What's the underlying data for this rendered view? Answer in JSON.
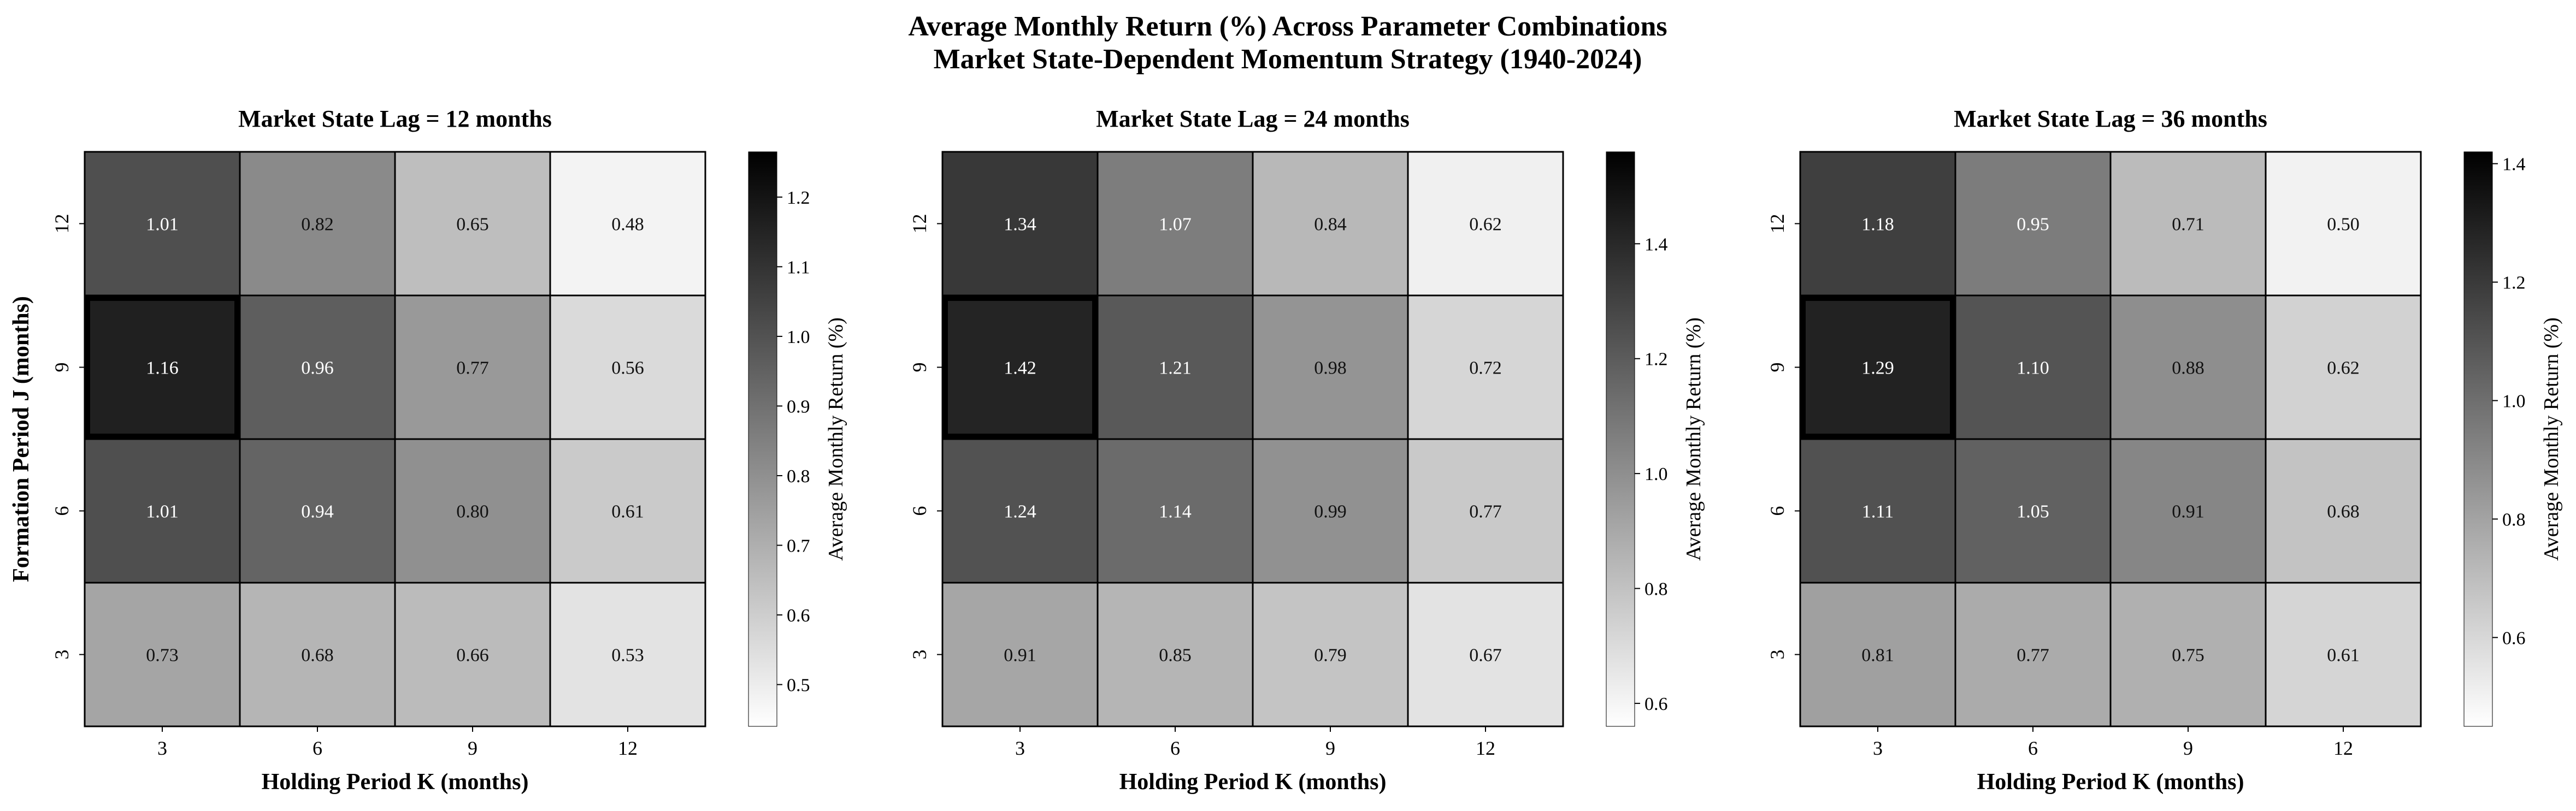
{
  "title_line1": "Average Monthly Return (%) Across Parameter Combinations",
  "title_line2": "Market State-Dependent Momentum Strategy (1940-2024)",
  "chart_data": [
    {
      "type": "heatmap",
      "title": "Market State Lag = 12 months",
      "xlabel": "Holding Period K (months)",
      "ylabel": "Formation Period J (months)",
      "x_categories": [
        "3",
        "6",
        "9",
        "12"
      ],
      "y_categories": [
        "12",
        "9",
        "6",
        "3"
      ],
      "values": [
        [
          1.01,
          0.82,
          0.65,
          0.48
        ],
        [
          1.16,
          0.96,
          0.77,
          0.56
        ],
        [
          1.01,
          0.94,
          0.8,
          0.61
        ],
        [
          0.73,
          0.68,
          0.66,
          0.53
        ]
      ],
      "value_labels": [
        [
          "1.01",
          "0.82",
          "0.65",
          "0.48"
        ],
        [
          "1.16",
          "0.96",
          "0.77",
          "0.56"
        ],
        [
          "1.01",
          "0.94",
          "0.80",
          "0.61"
        ],
        [
          "0.73",
          "0.68",
          "0.66",
          "0.53"
        ]
      ],
      "highlight_cell": {
        "row": 1,
        "col": 0
      },
      "colorbar": {
        "label": "Average Monthly Return (%)",
        "vmin": 0.44,
        "vmax": 1.265,
        "ticks": [
          "0.5",
          "0.6",
          "0.7",
          "0.8",
          "0.9",
          "1.0",
          "1.1",
          "1.2"
        ]
      }
    },
    {
      "type": "heatmap",
      "title": "Market State Lag = 24 months",
      "xlabel": "Holding Period K (months)",
      "ylabel": "",
      "x_categories": [
        "3",
        "6",
        "9",
        "12"
      ],
      "y_categories": [
        "12",
        "9",
        "6",
        "3"
      ],
      "values": [
        [
          1.34,
          1.07,
          0.84,
          0.62
        ],
        [
          1.42,
          1.21,
          0.98,
          0.72
        ],
        [
          1.24,
          1.14,
          0.99,
          0.77
        ],
        [
          0.91,
          0.85,
          0.79,
          0.67
        ]
      ],
      "value_labels": [
        [
          "1.34",
          "1.07",
          "0.84",
          "0.62"
        ],
        [
          "1.42",
          "1.21",
          "0.98",
          "0.72"
        ],
        [
          "1.24",
          "1.14",
          "0.99",
          "0.77"
        ],
        [
          "0.91",
          "0.85",
          "0.79",
          "0.67"
        ]
      ],
      "highlight_cell": {
        "row": 1,
        "col": 0
      },
      "colorbar": {
        "label": "Average Monthly Return (%)",
        "vmin": 0.56,
        "vmax": 1.56,
        "ticks": [
          "0.6",
          "0.8",
          "1.0",
          "1.2",
          "1.4"
        ]
      }
    },
    {
      "type": "heatmap",
      "title": "Market State Lag = 36 months",
      "xlabel": "Holding Period K (months)",
      "ylabel": "",
      "x_categories": [
        "3",
        "6",
        "9",
        "12"
      ],
      "y_categories": [
        "12",
        "9",
        "6",
        "3"
      ],
      "values": [
        [
          1.18,
          0.95,
          0.71,
          0.5
        ],
        [
          1.29,
          1.1,
          0.88,
          0.62
        ],
        [
          1.11,
          1.05,
          0.91,
          0.68
        ],
        [
          0.81,
          0.77,
          0.75,
          0.61
        ]
      ],
      "value_labels": [
        [
          "1.18",
          "0.95",
          "0.71",
          "0.50"
        ],
        [
          "1.29",
          "1.10",
          "0.88",
          "0.62"
        ],
        [
          "1.11",
          "1.05",
          "0.91",
          "0.68"
        ],
        [
          "0.81",
          "0.77",
          "0.75",
          "0.61"
        ]
      ],
      "highlight_cell": {
        "row": 1,
        "col": 0
      },
      "colorbar": {
        "label": "Average Monthly Return (%)",
        "vmin": 0.45,
        "vmax": 1.42,
        "ticks": [
          "0.6",
          "0.8",
          "1.0",
          "1.2",
          "1.4"
        ]
      }
    }
  ]
}
